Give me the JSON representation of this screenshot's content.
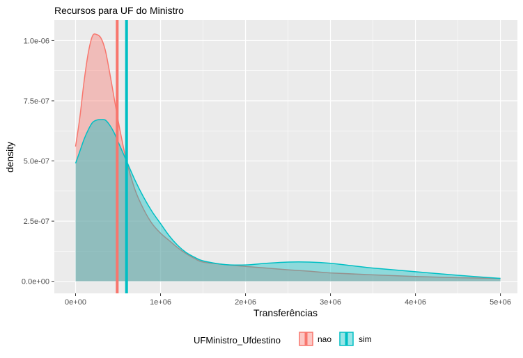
{
  "chart_data": {
    "type": "area",
    "title": "Recursos para UF do Ministro",
    "xlabel": "Transferências",
    "ylabel": "density",
    "xlim": [
      -250000,
      5200000
    ],
    "ylim": [
      -5e-08,
      1.085e-06
    ],
    "x_ticks": [
      0,
      1000000,
      2000000,
      3000000,
      4000000,
      5000000
    ],
    "x_tick_labels": [
      "0e+00",
      "1e+06",
      "2e+06",
      "3e+06",
      "4e+06",
      "5e+06"
    ],
    "y_ticks": [
      0,
      2.5e-07,
      5e-07,
      7.5e-07,
      1e-06
    ],
    "y_tick_labels": [
      "0.0e+00",
      "2.5e-07",
      "5.0e-07",
      "7.5e-07",
      "1.0e-06"
    ],
    "grid": true,
    "legend": {
      "title": "UFMinistro_Ufdestino",
      "position": "bottom",
      "entries": [
        {
          "label": "nao",
          "color": "#F8766D"
        },
        {
          "label": "sim",
          "color": "#00BFC4"
        }
      ]
    },
    "series": [
      {
        "name": "nao",
        "color": "#F8766D",
        "mean_line": 490000,
        "x": [
          0,
          50000,
          100000,
          150000,
          200000,
          250000,
          300000,
          350000,
          400000,
          450000,
          500000,
          550000,
          600000,
          700000,
          800000,
          900000,
          1000000,
          1100000,
          1200000,
          1300000,
          1400000,
          1500000,
          1750000,
          2000000,
          2250000,
          2500000,
          2750000,
          3000000,
          3500000,
          4000000,
          4500000,
          5000000
        ],
        "y": [
          5.6e-07,
          6.8e-07,
          8.3e-07,
          9.5e-07,
          1.02e-06,
          1.025e-06,
          1.01e-06,
          9.6e-07,
          8.7e-07,
          7.7e-07,
          6.7e-07,
          5.8e-07,
          5e-07,
          3.8e-07,
          3e-07,
          2.4e-07,
          2e-07,
          1.7e-07,
          1.4e-07,
          1.15e-07,
          9.5e-08,
          8e-08,
          7e-08,
          6.2e-08,
          5.5e-08,
          4.8e-08,
          4.2e-08,
          3.5e-08,
          2.7e-08,
          2e-08,
          1.5e-08,
          1.2e-08
        ]
      },
      {
        "name": "sim",
        "color": "#00BFC4",
        "mean_line": 600000,
        "x": [
          0,
          50000,
          100000,
          150000,
          200000,
          250000,
          300000,
          350000,
          400000,
          450000,
          500000,
          600000,
          700000,
          800000,
          900000,
          1000000,
          1100000,
          1200000,
          1300000,
          1400000,
          1500000,
          1750000,
          2000000,
          2250000,
          2500000,
          2750000,
          3000000,
          3250000,
          3500000,
          4000000,
          4500000,
          5000000
        ],
        "y": [
          4.9e-07,
          5.4e-07,
          5.9e-07,
          6.3e-07,
          6.6e-07,
          6.7e-07,
          6.72e-07,
          6.7e-07,
          6.5e-07,
          6.2e-07,
          5.8e-07,
          5e-07,
          4.2e-07,
          3.5e-07,
          2.9e-07,
          2.4e-07,
          1.9e-07,
          1.5e-07,
          1.2e-07,
          1e-07,
          8.5e-08,
          7e-08,
          6.8e-08,
          7.5e-08,
          8e-08,
          8e-08,
          7.5e-08,
          6.5e-08,
          5.5e-08,
          4e-08,
          2.5e-08,
          1.2e-08
        ]
      }
    ]
  }
}
